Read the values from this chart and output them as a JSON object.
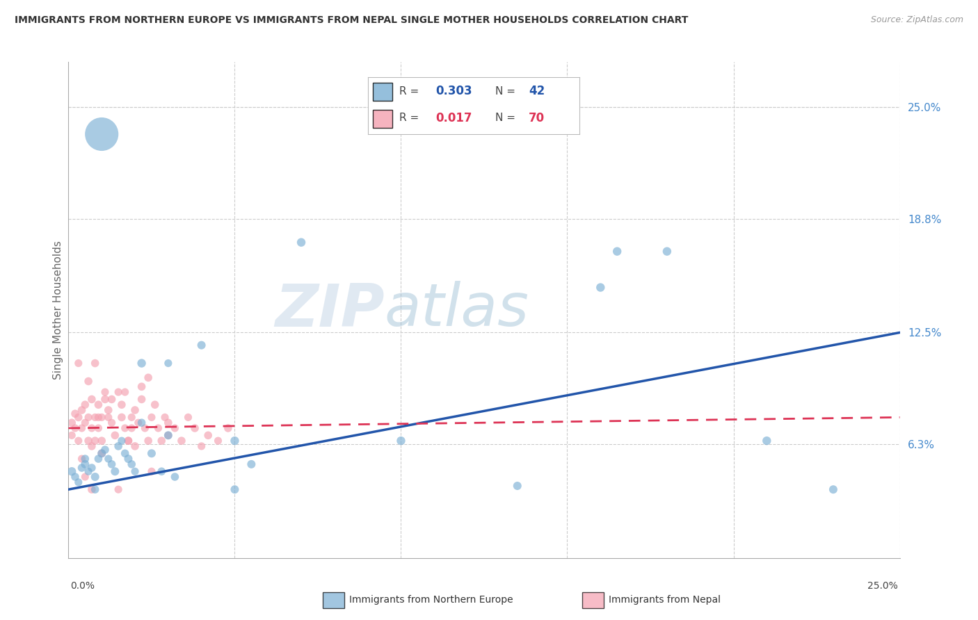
{
  "title": "IMMIGRANTS FROM NORTHERN EUROPE VS IMMIGRANTS FROM NEPAL SINGLE MOTHER HOUSEHOLDS CORRELATION CHART",
  "source": "Source: ZipAtlas.com",
  "ylabel": "Single Mother Households",
  "ylabel_right_ticks": [
    "25.0%",
    "18.8%",
    "12.5%",
    "6.3%"
  ],
  "ylabel_right_vals": [
    0.25,
    0.188,
    0.125,
    0.063
  ],
  "color_blue": "#7BAFD4",
  "color_pink": "#F4A0B0",
  "color_blue_line": "#2255AA",
  "color_pink_line": "#DD3355",
  "watermark_zip": "ZIP",
  "watermark_atlas": "atlas",
  "xlim": [
    0.0,
    0.25
  ],
  "ylim": [
    0.0,
    0.275
  ],
  "blue_line_x": [
    0.0,
    0.25
  ],
  "blue_line_y": [
    0.038,
    0.125
  ],
  "pink_line_x": [
    0.0,
    0.25
  ],
  "pink_line_y": [
    0.072,
    0.078
  ],
  "blue_x": [
    0.001,
    0.002,
    0.003,
    0.004,
    0.005,
    0.005,
    0.006,
    0.007,
    0.008,
    0.009,
    0.01,
    0.011,
    0.012,
    0.013,
    0.014,
    0.015,
    0.016,
    0.017,
    0.018,
    0.019,
    0.02,
    0.022,
    0.025,
    0.028,
    0.03,
    0.032,
    0.04,
    0.05,
    0.055,
    0.07,
    0.1,
    0.135,
    0.165,
    0.18,
    0.21,
    0.23,
    0.16,
    0.05,
    0.022,
    0.03,
    0.01,
    0.008
  ],
  "blue_y": [
    0.048,
    0.045,
    0.042,
    0.05,
    0.052,
    0.055,
    0.048,
    0.05,
    0.045,
    0.055,
    0.058,
    0.06,
    0.055,
    0.052,
    0.048,
    0.062,
    0.065,
    0.058,
    0.055,
    0.052,
    0.048,
    0.075,
    0.058,
    0.048,
    0.108,
    0.045,
    0.118,
    0.065,
    0.052,
    0.175,
    0.065,
    0.04,
    0.17,
    0.17,
    0.065,
    0.038,
    0.15,
    0.038,
    0.108,
    0.068,
    0.235,
    0.038
  ],
  "blue_sizes": [
    80,
    70,
    65,
    70,
    75,
    70,
    65,
    70,
    75,
    70,
    75,
    70,
    65,
    70,
    75,
    70,
    65,
    70,
    75,
    70,
    65,
    70,
    75,
    70,
    65,
    70,
    75,
    80,
    75,
    80,
    80,
    75,
    80,
    80,
    80,
    75,
    80,
    75,
    80,
    75,
    1200,
    70
  ],
  "pink_x": [
    0.001,
    0.001,
    0.002,
    0.002,
    0.003,
    0.003,
    0.004,
    0.004,
    0.005,
    0.005,
    0.006,
    0.006,
    0.007,
    0.007,
    0.008,
    0.008,
    0.009,
    0.009,
    0.01,
    0.01,
    0.011,
    0.012,
    0.013,
    0.014,
    0.015,
    0.016,
    0.017,
    0.018,
    0.019,
    0.02,
    0.021,
    0.022,
    0.023,
    0.024,
    0.025,
    0.026,
    0.027,
    0.028,
    0.029,
    0.03,
    0.032,
    0.034,
    0.036,
    0.038,
    0.04,
    0.042,
    0.045,
    0.048,
    0.005,
    0.01,
    0.015,
    0.02,
    0.025,
    0.008,
    0.012,
    0.018,
    0.003,
    0.006,
    0.009,
    0.013,
    0.017,
    0.022,
    0.004,
    0.007,
    0.011,
    0.016,
    0.019,
    0.024,
    0.03,
    0.007
  ],
  "pink_y": [
    0.075,
    0.068,
    0.08,
    0.072,
    0.078,
    0.065,
    0.082,
    0.072,
    0.085,
    0.075,
    0.065,
    0.078,
    0.088,
    0.072,
    0.065,
    0.078,
    0.085,
    0.072,
    0.065,
    0.078,
    0.088,
    0.082,
    0.075,
    0.068,
    0.092,
    0.078,
    0.072,
    0.065,
    0.078,
    0.082,
    0.075,
    0.088,
    0.072,
    0.065,
    0.078,
    0.085,
    0.072,
    0.065,
    0.078,
    0.075,
    0.072,
    0.065,
    0.078,
    0.072,
    0.062,
    0.068,
    0.065,
    0.072,
    0.045,
    0.058,
    0.038,
    0.062,
    0.048,
    0.108,
    0.078,
    0.065,
    0.108,
    0.098,
    0.078,
    0.088,
    0.092,
    0.095,
    0.055,
    0.062,
    0.092,
    0.085,
    0.072,
    0.1,
    0.068,
    0.038
  ],
  "pink_sizes": [
    70,
    65,
    70,
    65,
    70,
    65,
    70,
    65,
    70,
    65,
    70,
    65,
    70,
    65,
    70,
    65,
    70,
    65,
    70,
    65,
    70,
    70,
    65,
    70,
    65,
    70,
    65,
    70,
    65,
    70,
    65,
    70,
    65,
    70,
    65,
    70,
    65,
    70,
    65,
    70,
    65,
    70,
    65,
    70,
    65,
    70,
    65,
    70,
    65,
    70,
    65,
    70,
    65,
    70,
    65,
    70,
    65,
    70,
    65,
    70,
    65,
    70,
    65,
    70,
    65,
    70,
    65,
    70,
    65,
    70
  ],
  "background_color": "#FFFFFF",
  "grid_color": "#CCCCCC"
}
